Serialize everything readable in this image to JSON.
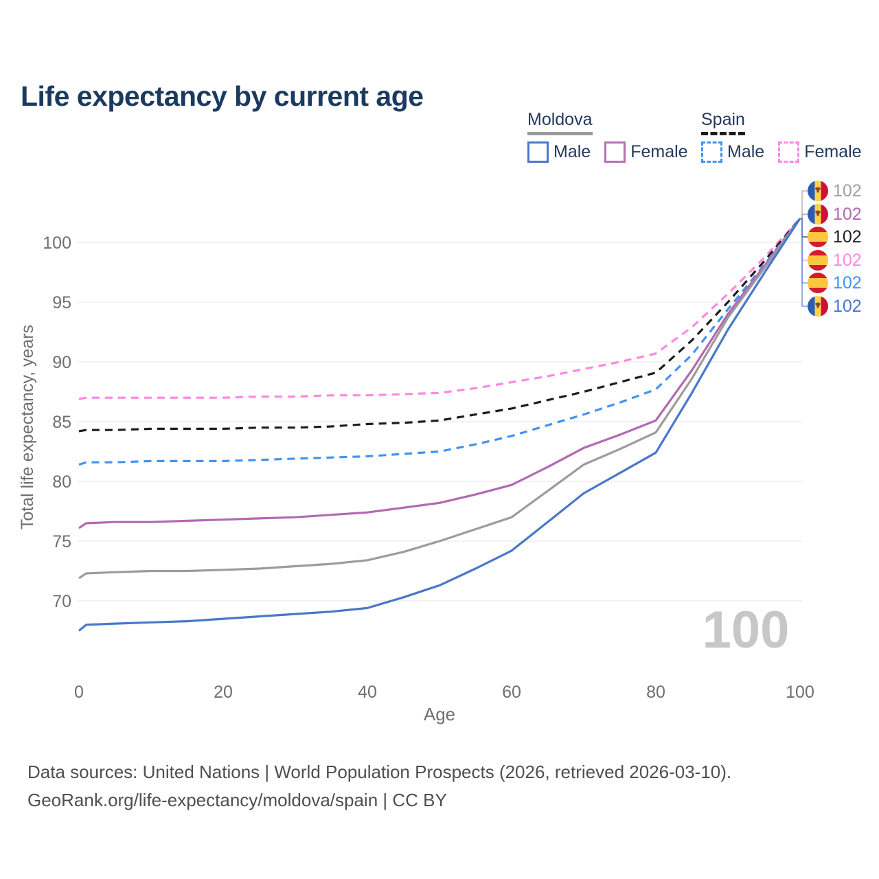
{
  "page": {
    "title": "Life expectancy by current age"
  },
  "legend": {
    "groups": [
      {
        "title": "Moldova",
        "line_style": "solid",
        "underline_color": "#9a9a9a",
        "items": [
          {
            "label": "Male",
            "color": "#4878c8",
            "dash": false
          },
          {
            "label": "Female",
            "color": "#b671b6",
            "dash": false
          }
        ]
      },
      {
        "title": "Spain",
        "line_style": "dashed",
        "underline_color": "#1d1d1d",
        "items": [
          {
            "label": "Male",
            "color": "#4092f4",
            "dash": true
          },
          {
            "label": "Female",
            "color": "#ff87e3",
            "dash": true
          }
        ]
      }
    ]
  },
  "chart_data": {
    "type": "line",
    "title": "Life expectancy by current age",
    "xlabel": "Age",
    "ylabel": "Total life expectancy, years",
    "x_ticks": [
      0,
      20,
      40,
      60,
      80,
      100
    ],
    "y_ticks": [
      70,
      75,
      80,
      85,
      90,
      95,
      100
    ],
    "xlim": [
      0,
      100
    ],
    "ylim": [
      65,
      103.5
    ],
    "grid": "horizontal",
    "legend_position": "top-right",
    "ages": [
      0,
      1,
      5,
      10,
      15,
      20,
      25,
      30,
      35,
      40,
      45,
      50,
      55,
      60,
      65,
      70,
      75,
      80,
      85,
      90,
      95,
      100
    ],
    "series": [
      {
        "id": "spain_female",
        "name": "Spain Female",
        "color": "#ff87e3",
        "dash": true,
        "values": [
          86.9,
          87.0,
          87.0,
          87.0,
          87.0,
          87.0,
          87.1,
          87.1,
          87.2,
          87.2,
          87.3,
          87.4,
          87.8,
          88.3,
          88.8,
          89.4,
          90.0,
          90.7,
          92.9,
          95.7,
          98.7,
          102
        ]
      },
      {
        "id": "spain_both",
        "name": "Spain",
        "color": "#1d1d1d",
        "dash": true,
        "values": [
          84.2,
          84.3,
          84.3,
          84.4,
          84.4,
          84.4,
          84.5,
          84.5,
          84.6,
          84.8,
          84.9,
          85.1,
          85.6,
          86.1,
          86.8,
          87.5,
          88.3,
          89.1,
          91.8,
          95.0,
          98.4,
          102
        ]
      },
      {
        "id": "spain_male",
        "name": "Spain Male",
        "color": "#4092f4",
        "dash": true,
        "values": [
          81.4,
          81.6,
          81.6,
          81.7,
          81.7,
          81.7,
          81.8,
          81.9,
          82.0,
          82.1,
          82.3,
          82.5,
          83.1,
          83.8,
          84.7,
          85.6,
          86.6,
          87.7,
          90.6,
          94.4,
          98.1,
          102
        ]
      },
      {
        "id": "moldova_female",
        "name": "Moldova Female",
        "color": "#b269b2",
        "dash": false,
        "values": [
          76.1,
          76.5,
          76.6,
          76.6,
          76.7,
          76.8,
          76.9,
          77.0,
          77.2,
          77.4,
          77.8,
          78.2,
          78.9,
          79.7,
          81.2,
          82.8,
          83.9,
          85.1,
          89.3,
          94.0,
          98.0,
          102
        ]
      },
      {
        "id": "moldova_both",
        "name": "Moldova",
        "color": "#9c9c9c",
        "dash": false,
        "values": [
          71.9,
          72.3,
          72.4,
          72.5,
          72.5,
          72.6,
          72.7,
          72.9,
          73.1,
          73.4,
          74.1,
          75.0,
          76.0,
          77.0,
          79.2,
          81.4,
          82.7,
          84.1,
          88.6,
          93.7,
          97.8,
          102
        ]
      },
      {
        "id": "moldova_male",
        "name": "Moldova Male",
        "color": "#4878c8",
        "dash": false,
        "values": [
          67.5,
          68.0,
          68.1,
          68.2,
          68.3,
          68.5,
          68.7,
          68.9,
          69.1,
          69.4,
          70.3,
          71.3,
          72.7,
          74.2,
          76.6,
          79.0,
          80.7,
          82.4,
          87.4,
          92.7,
          97.4,
          102
        ]
      }
    ],
    "end_labels": [
      {
        "series": "moldova_both",
        "flag": "moldova",
        "value": "102",
        "color": "#a0a0a0"
      },
      {
        "series": "moldova_female",
        "flag": "moldova",
        "value": "102",
        "color": "#b269b2"
      },
      {
        "series": "spain_both",
        "flag": "spain",
        "value": "102",
        "color": "#1d1d1d"
      },
      {
        "series": "spain_female",
        "flag": "spain",
        "value": "102",
        "color": "#ff87e3"
      },
      {
        "series": "spain_male",
        "flag": "spain",
        "value": "102",
        "color": "#4092f4"
      },
      {
        "series": "moldova_male",
        "flag": "moldova",
        "value": "102",
        "color": "#4878c8"
      }
    ],
    "watermark": "100"
  },
  "footer": {
    "line1": "Data sources: United Nations | World Population Prospects (2026, retrieved 2026-03-10).",
    "line2": "GeoRank.org/life-expectancy/moldova/spain | CC BY"
  },
  "colors": {
    "title": "#1b3a5f",
    "axis_text": "#6f6f6f",
    "grid": "#e9e9e9",
    "watermark": "#c7c7c7",
    "legend_text": "#223a5c"
  }
}
